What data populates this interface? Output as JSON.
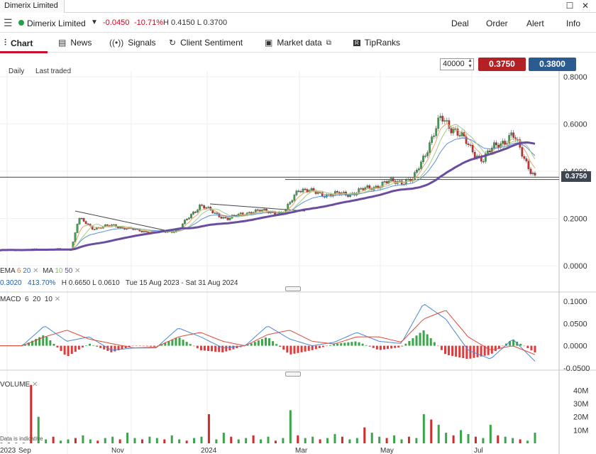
{
  "window": {
    "tab_title": "Dimerix Limited",
    "restore_icon": "restore-icon",
    "close_icon": "close-icon"
  },
  "quote": {
    "menu_icon": "menu-icon",
    "instrument": "Dimerix Limited",
    "status_color": "#21a344",
    "change": "-0.0450",
    "change_pct": "-10.71%",
    "high_low": "H 0.4150  L 0.3700",
    "actions": [
      "Deal",
      "Order",
      "Alert",
      "Info"
    ]
  },
  "tabs": [
    {
      "label": "Chart",
      "icon": "chart-icon",
      "active": true
    },
    {
      "label": "News",
      "icon": "news-icon"
    },
    {
      "label": "Signals",
      "icon": "signals-icon"
    },
    {
      "label": "Client Sentiment",
      "icon": "sentiment-icon"
    },
    {
      "label": "Market data",
      "icon": "external-link-icon"
    },
    {
      "label": "TipRanks",
      "icon": "tipranks-icon"
    }
  ],
  "toolbar": {
    "interval": "Daily",
    "price_type": "Last traded",
    "quantity": "40000",
    "sell_price": "0.3750",
    "buy_price": "0.3800"
  },
  "price_chart": {
    "current_price_label": "0.3750",
    "legend_ema": "EMA",
    "ema_values": [
      "6",
      "20"
    ],
    "legend_ma": "MA",
    "ma_values": [
      "10",
      "50"
    ],
    "info_low": "0.3020",
    "info_pct": "413.70%",
    "info_hl": "H 0.6650  L 0.0610",
    "info_range": "Tue 15 Aug 2023 - Sat 31 Aug 2024"
  },
  "macd_legend": {
    "label": "MACD",
    "params": [
      "6",
      "20",
      "10"
    ]
  },
  "volume_legend": {
    "label": "VOLUME",
    "note": "Data is indicative"
  },
  "chart_data": [
    {
      "type": "line",
      "title": "",
      "y_ticks": [
        "0.8000",
        "0.6000",
        "0.4000",
        "0.2000",
        "0.0000"
      ],
      "ylim": [
        0,
        0.8
      ],
      "x_ticks": [
        "2023",
        "Sep",
        "Nov",
        "2024",
        "Mar",
        "May",
        "Jul"
      ],
      "series": [
        {
          "x": [
            "2023-08-15",
            "2023-09-15",
            "2023-10-05",
            "2023-10-10",
            "2023-10-20",
            "2023-11-05",
            "2023-11-20",
            "2023-12-05",
            "2023-12-20",
            "2024-01-05",
            "2024-01-15",
            "2024-01-25",
            "2024-02-10",
            "2024-02-25",
            "2024-03-05",
            "2024-03-15",
            "2024-03-25",
            "2024-04-10",
            "2024-04-25",
            "2024-05-10",
            "2024-05-25",
            "2024-06-05",
            "2024-06-15",
            "2024-06-25",
            "2024-07-05",
            "2024-07-15",
            "2024-07-25",
            "2024-08-05",
            "2024-08-15",
            "2024-08-25",
            "2024-08-31"
          ],
          "values": [
            0.065,
            0.07,
            0.07,
            0.2,
            0.16,
            0.17,
            0.15,
            0.14,
            0.15,
            0.26,
            0.22,
            0.2,
            0.23,
            0.23,
            0.22,
            0.33,
            0.31,
            0.3,
            0.31,
            0.34,
            0.36,
            0.36,
            0.5,
            0.62,
            0.58,
            0.5,
            0.45,
            0.52,
            0.55,
            0.44,
            0.375
          ]
        }
      ],
      "horizontal_line": 0.375,
      "support_line": 0.365
    },
    {
      "type": "line",
      "title": "",
      "y_ticks": [
        "0.1000",
        "0.0500",
        "0.0000",
        "-0.0500"
      ],
      "ylim": [
        -0.055,
        0.105
      ],
      "series": [
        {
          "name": "MACD",
          "values": [
            0,
            0,
            0.045,
            0.01,
            0.02,
            -0.01,
            -0.005,
            -0.005,
            0.04,
            0.02,
            -0.005,
            0.0,
            0.045,
            0.015,
            0.0,
            0.008,
            0.03,
            0.01,
            0.005,
            0.095,
            0.06,
            -0.01,
            -0.03,
            0.015,
            -0.035
          ]
        },
        {
          "name": "Signal",
          "values": [
            0,
            0,
            0.02,
            0.035,
            0.015,
            0.005,
            -0.005,
            -0.003,
            0.02,
            0.03,
            0.01,
            0.0,
            0.025,
            0.035,
            0.01,
            0.004,
            0.02,
            0.02,
            0.008,
            0.06,
            0.08,
            0.02,
            -0.01,
            0.0,
            -0.02
          ]
        }
      ]
    },
    {
      "type": "bar",
      "title": "",
      "y_ticks": [
        "40M",
        "30M",
        "20M",
        "10M"
      ],
      "ylim": [
        0,
        45
      ],
      "values": [
        0.5,
        0.5,
        0.5,
        0.5,
        44,
        20,
        3,
        5,
        2,
        3,
        4,
        6,
        3,
        2,
        4,
        5,
        3,
        8,
        4,
        3,
        5,
        4,
        3,
        6,
        3,
        2,
        4,
        5,
        22,
        3,
        8,
        5,
        3,
        4,
        6,
        3,
        5,
        2,
        4,
        25,
        6,
        4,
        5,
        3,
        4,
        7,
        5,
        3,
        4,
        12,
        8,
        5,
        4,
        6,
        3,
        5,
        4,
        22,
        18,
        14,
        8,
        6,
        10,
        7,
        5,
        4,
        14,
        6,
        5,
        4,
        3,
        2,
        8
      ]
    }
  ]
}
